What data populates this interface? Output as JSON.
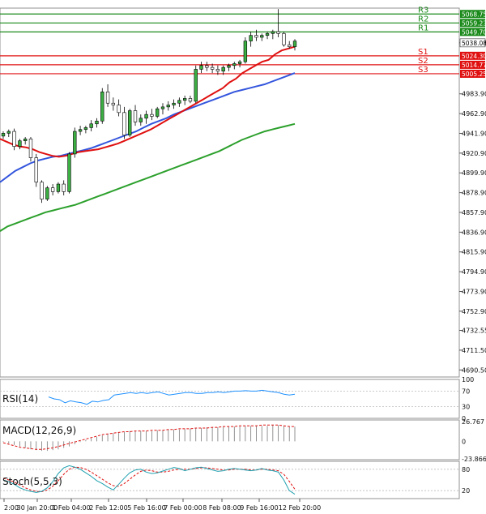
{
  "chart_data": [
    {
      "type": "candlestick",
      "panel": "price",
      "y_ticks": [
        5038.08,
        4983.9,
        4962.9,
        4941.9,
        4920.9,
        4899.9,
        4878.9,
        4857.9,
        4836.9,
        4815.9,
        4794.9,
        4773.9,
        4752.9,
        4732.55,
        4711.5,
        4690.5
      ],
      "ylim": [
        4683,
        5075
      ],
      "x_ticks": [
        "2:00",
        "30 Jan 20:00",
        "1 Feb 04:00",
        "2 Feb 12:00",
        "5 Feb 16:00",
        "7 Feb 00:00",
        "8 Feb 08:00",
        "9 Feb 16:00",
        "12 Feb 20:00"
      ],
      "last_price": 5038.08,
      "levels": [
        {
          "name": "R3",
          "value": 5068.75,
          "color": "#1a8a1a"
        },
        {
          "name": "R2",
          "value": 5059.23,
          "color": "#1a8a1a"
        },
        {
          "name": "R1",
          "value": 5049.7,
          "color": "#1a8a1a"
        },
        {
          "name": "S1",
          "value": 5024.3,
          "color": "#e01010"
        },
        {
          "name": "S2",
          "value": 5014.77,
          "color": "#e01010"
        },
        {
          "name": "S3",
          "value": 5005.25,
          "color": "#e01010"
        }
      ],
      "candles": [
        [
          4939,
          4944,
          4936,
          4942
        ],
        [
          4942,
          4946,
          4938,
          4944
        ],
        [
          4944,
          4947,
          4924,
          4928
        ],
        [
          4928,
          4936,
          4925,
          4934
        ],
        [
          4934,
          4938,
          4930,
          4936
        ],
        [
          4936,
          4938,
          4912,
          4916
        ],
        [
          4916,
          4920,
          4885,
          4890
        ],
        [
          4890,
          4892,
          4868,
          4872
        ],
        [
          4872,
          4886,
          4870,
          4884
        ],
        [
          4884,
          4888,
          4876,
          4880
        ],
        [
          4880,
          4890,
          4878,
          4888
        ],
        [
          4888,
          4892,
          4876,
          4880
        ],
        [
          4880,
          4922,
          4878,
          4920
        ],
        [
          4920,
          4948,
          4916,
          4944
        ],
        [
          4944,
          4950,
          4940,
          4946
        ],
        [
          4946,
          4950,
          4942,
          4948
        ],
        [
          4948,
          4956,
          4944,
          4952
        ],
        [
          4952,
          4958,
          4948,
          4955
        ],
        [
          4955,
          4990,
          4952,
          4986
        ],
        [
          4986,
          4994,
          4970,
          4974
        ],
        [
          4974,
          4980,
          4966,
          4972
        ],
        [
          4972,
          4978,
          4960,
          4964
        ],
        [
          4964,
          4970,
          4936,
          4940
        ],
        [
          4940,
          4968,
          4938,
          4966
        ],
        [
          4966,
          4972,
          4950,
          4954
        ],
        [
          4954,
          4962,
          4950,
          4958
        ],
        [
          4958,
          4966,
          4952,
          4962
        ],
        [
          4962,
          4968,
          4956,
          4960
        ],
        [
          4960,
          4970,
          4958,
          4968
        ],
        [
          4968,
          4974,
          4962,
          4970
        ],
        [
          4970,
          4976,
          4966,
          4972
        ],
        [
          4972,
          4978,
          4968,
          4974
        ],
        [
          4974,
          4980,
          4970,
          4977
        ],
        [
          4977,
          4982,
          4972,
          4979
        ],
        [
          4979,
          4982,
          4974,
          4976
        ],
        [
          4976,
          5014,
          4974,
          5010
        ],
        [
          5010,
          5018,
          5006,
          5014
        ],
        [
          5014,
          5018,
          5008,
          5012
        ],
        [
          5012,
          5016,
          5006,
          5010
        ],
        [
          5010,
          5014,
          5004,
          5008
        ],
        [
          5008,
          5014,
          5004,
          5012
        ],
        [
          5012,
          5016,
          5008,
          5014
        ],
        [
          5014,
          5018,
          5010,
          5016
        ],
        [
          5016,
          5020,
          5012,
          5018
        ],
        [
          5018,
          5044,
          5016,
          5040
        ],
        [
          5040,
          5050,
          5034,
          5046
        ],
        [
          5046,
          5052,
          5040,
          5044
        ],
        [
          5044,
          5048,
          5040,
          5046
        ],
        [
          5046,
          5050,
          5042,
          5048
        ],
        [
          5048,
          5052,
          5042,
          5050
        ],
        [
          5050,
          5074,
          5044,
          5048
        ],
        [
          5048,
          5050,
          5034,
          5036
        ],
        [
          5036,
          5040,
          5032,
          5034
        ],
        [
          5034,
          5042,
          5030,
          5040
        ]
      ],
      "sma_red": [
        4936,
        4933,
        4930,
        4928,
        4927,
        4925,
        4922,
        4920,
        4918,
        4917,
        4918,
        4920,
        4922,
        4923,
        4924,
        4925,
        4927,
        4929,
        4931,
        4934,
        4937,
        4940,
        4943,
        4946,
        4950,
        4954,
        4958,
        4962,
        4966,
        4970,
        4974,
        4978,
        4982,
        4986,
        4990,
        4996,
        5000,
        5006,
        5010,
        5014,
        5018,
        5020,
        5026,
        5030,
        5032,
        5034
      ],
      "sma_blue": [
        4890,
        4896,
        4902,
        4906,
        4910,
        4913,
        4915,
        4917,
        4918,
        4920,
        4922,
        4924,
        4926,
        4929,
        4932,
        4935,
        4938,
        4941,
        4944,
        4948,
        4952,
        4955,
        4958,
        4962,
        4965,
        4968,
        4971,
        4974,
        4977,
        4980,
        4983,
        4986,
        4988,
        4990,
        4992,
        4994,
        4997,
        5000,
        5003,
        5006
      ],
      "sma_green": [
        4838,
        4843,
        4846,
        4849,
        4852,
        4855,
        4858,
        4860,
        4862,
        4864,
        4866,
        4869,
        4872,
        4875,
        4878,
        4881,
        4884,
        4887,
        4890,
        4893,
        4896,
        4899,
        4902,
        4905,
        4908,
        4911,
        4914,
        4917,
        4920,
        4923,
        4927,
        4931,
        4935,
        4938,
        4941,
        4944,
        4946,
        4948,
        4950,
        4952
      ]
    },
    {
      "type": "line",
      "panel": "rsi",
      "title": "RSI(14)",
      "y_ticks": [
        100,
        70,
        30,
        0
      ],
      "ylim": [
        0,
        100
      ],
      "color": "#1e90ff",
      "values": [
        55,
        50,
        48,
        40,
        45,
        42,
        40,
        36,
        44,
        42,
        46,
        48,
        60,
        62,
        64,
        66,
        64,
        66,
        64,
        66,
        68,
        64,
        60,
        62,
        64,
        66,
        66,
        64,
        64,
        66,
        66,
        68,
        66,
        68,
        70,
        70,
        71,
        70,
        70,
        72,
        70,
        68,
        66,
        62,
        60,
        62
      ]
    },
    {
      "type": "bar",
      "panel": "macd",
      "title": "MACD(12,26,9)",
      "y_ticks": [
        26.767,
        0.0,
        -23.866
      ],
      "ylim": [
        -23.866,
        26.767
      ],
      "signal_color": "#e01010",
      "histogram": [
        -1,
        -3,
        -5,
        -7,
        -9,
        -11,
        -12,
        -13,
        -13,
        -12,
        -11,
        -9,
        -7,
        -4,
        -1,
        2,
        4,
        6,
        8,
        10,
        11,
        12,
        13,
        14,
        14,
        14,
        14,
        14,
        15,
        15,
        16,
        16,
        16,
        17,
        17,
        18,
        18,
        19,
        19,
        19,
        20,
        20,
        20,
        20,
        21,
        21,
        21,
        21,
        21,
        22,
        22,
        21,
        20,
        20
      ],
      "signal": [
        -2,
        -4,
        -6,
        -8,
        -9,
        -10,
        -11,
        -11,
        -10,
        -9,
        -7,
        -5,
        -3,
        -1,
        1,
        3,
        5,
        7,
        9,
        10,
        11,
        12,
        13,
        13,
        14,
        14,
        14,
        15,
        15,
        15,
        16,
        16,
        17,
        17,
        17,
        18,
        18,
        18,
        19,
        19,
        20,
        20,
        20,
        21,
        21,
        21,
        21,
        22,
        22,
        22,
        22,
        21,
        20,
        20
      ]
    },
    {
      "type": "line",
      "panel": "stoch",
      "title": "Stoch(5,5,3)",
      "y_ticks": [
        80,
        20
      ],
      "ylim": [
        0,
        100
      ],
      "k_color": "#1fa0b0",
      "d_color": "#e01010",
      "k": [
        50,
        45,
        38,
        28,
        22,
        18,
        15,
        18,
        28,
        45,
        68,
        84,
        90,
        86,
        80,
        70,
        60,
        48,
        40,
        30,
        22,
        38,
        55,
        70,
        78,
        80,
        72,
        68,
        70,
        75,
        80,
        85,
        82,
        76,
        80,
        84,
        86,
        82,
        78,
        74,
        76,
        80,
        82,
        80,
        78,
        76,
        78,
        82,
        78,
        76,
        72,
        50,
        20,
        10
      ],
      "d": [
        55,
        50,
        44,
        36,
        28,
        22,
        18,
        17,
        22,
        32,
        48,
        66,
        80,
        86,
        85,
        80,
        72,
        62,
        52,
        42,
        34,
        32,
        40,
        52,
        64,
        74,
        78,
        76,
        72,
        72,
        74,
        78,
        80,
        80,
        80,
        82,
        84,
        84,
        82,
        80,
        78,
        78,
        80,
        80,
        80,
        78,
        78,
        80,
        80,
        78,
        76,
        66,
        46,
        24
      ]
    }
  ]
}
